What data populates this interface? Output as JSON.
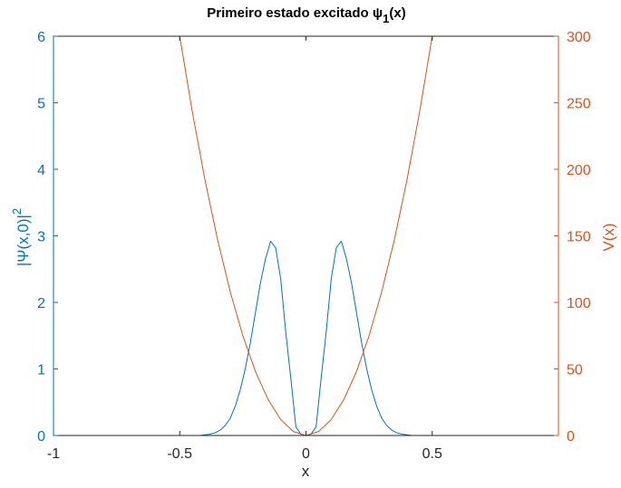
{
  "chart_data": {
    "type": "line",
    "title": "Primeiro estado excitado ψ",
    "title_subscript": "1",
    "title_suffix": "(x)",
    "xlabel": "x",
    "ylabel_left": "|Ψ(x,0)|",
    "ylabel_left_superscript": "2",
    "ylabel_right": "V(x)",
    "xlim": [
      -1,
      1
    ],
    "ylim_left": [
      0,
      6
    ],
    "ylim_right": [
      0,
      300
    ],
    "xticks": [
      -1,
      -0.5,
      0,
      0.5
    ],
    "xtick_labels": [
      "-1",
      "-0.5",
      "0",
      "0.5"
    ],
    "yticks_left": [
      0,
      1,
      2,
      3,
      4,
      5,
      6
    ],
    "ytick_labels_left": [
      "0",
      "1",
      "2",
      "3",
      "4",
      "5",
      "6"
    ],
    "yticks_right": [
      0,
      50,
      100,
      150,
      200,
      250,
      300
    ],
    "ytick_labels_right": [
      "0",
      "50",
      "100",
      "150",
      "200",
      "250",
      "300"
    ],
    "grid": false,
    "colors": {
      "left": "#0072BD",
      "right": "#D95319"
    },
    "series": [
      {
        "axis": "left",
        "x": [
          -0.44,
          -0.42,
          -0.4,
          -0.38,
          -0.36,
          -0.34,
          -0.32,
          -0.3,
          -0.28,
          -0.26,
          -0.24,
          -0.22,
          -0.2,
          -0.18,
          -0.16,
          -0.14,
          -0.12,
          -0.1,
          -0.08,
          -0.06,
          -0.04,
          -0.02,
          0.0,
          0.02,
          0.04,
          0.06,
          0.08,
          0.1,
          0.12,
          0.14,
          0.16,
          0.18,
          0.2,
          0.22,
          0.24,
          0.26,
          0.28,
          0.3,
          0.32,
          0.34,
          0.36,
          0.38,
          0.4,
          0.42,
          0.44
        ],
        "y": [
          0.0,
          0.0,
          0.01,
          0.02,
          0.04,
          0.08,
          0.15,
          0.26,
          0.44,
          0.69,
          1.01,
          1.4,
          1.85,
          2.3,
          2.66,
          2.92,
          2.82,
          2.35,
          1.55,
          0.86,
          0.13,
          0.02,
          0.0,
          0.02,
          0.13,
          0.86,
          1.55,
          2.35,
          2.82,
          2.92,
          2.66,
          2.3,
          1.85,
          1.4,
          1.01,
          0.69,
          0.44,
          0.26,
          0.15,
          0.08,
          0.04,
          0.02,
          0.01,
          0.0,
          0.0
        ]
      },
      {
        "axis": "right",
        "x": [
          -0.5,
          -0.45,
          -0.4,
          -0.35,
          -0.3,
          -0.25,
          -0.2,
          -0.15,
          -0.1,
          -0.05,
          0,
          0.05,
          0.1,
          0.15,
          0.2,
          0.25,
          0.3,
          0.35,
          0.4,
          0.45,
          0.5
        ],
        "y": [
          300,
          243,
          192,
          147,
          108,
          75,
          48,
          27,
          12,
          3,
          0,
          3,
          12,
          27,
          48,
          75,
          108,
          147,
          192,
          243,
          300
        ]
      }
    ]
  }
}
